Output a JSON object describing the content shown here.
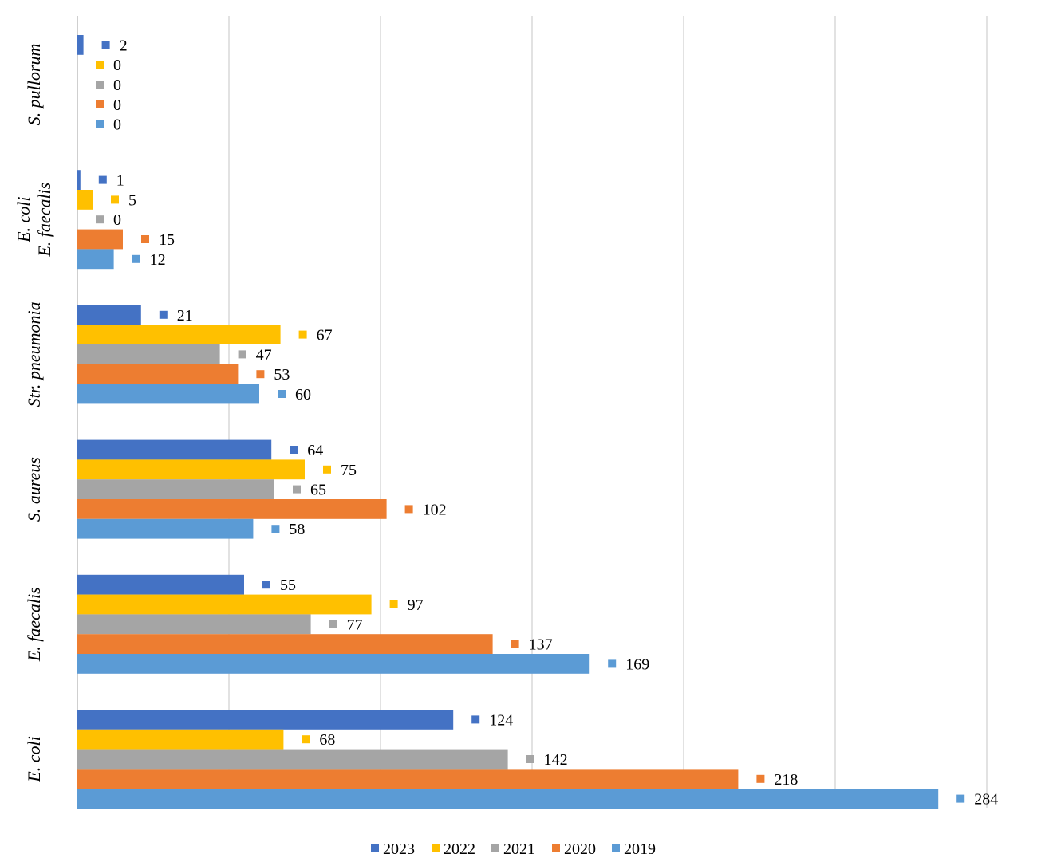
{
  "chart_data": {
    "type": "bar",
    "orientation": "horizontal",
    "title": "",
    "xlabel": "",
    "ylabel": "",
    "xlim": [
      0,
      300
    ],
    "grid": true,
    "legend_position": "bottom",
    "categories": [
      [
        "S. pullorum"
      ],
      [
        "E. coli",
        "E. faecalis"
      ],
      [
        "Str. pneumonia"
      ],
      [
        "S. aureus"
      ],
      [
        "E. faecalis"
      ],
      [
        "E. coli"
      ]
    ],
    "series": [
      {
        "name": "2023",
        "color": "#4472C4",
        "values": [
          2,
          1,
          21,
          64,
          55,
          124
        ]
      },
      {
        "name": "2022",
        "color": "#FFC000",
        "values": [
          0,
          5,
          67,
          75,
          97,
          68
        ]
      },
      {
        "name": "2021",
        "color": "#A5A5A5",
        "values": [
          0,
          0,
          47,
          65,
          77,
          142
        ]
      },
      {
        "name": "2020",
        "color": "#ED7D31",
        "values": [
          0,
          15,
          53,
          102,
          137,
          218
        ]
      },
      {
        "name": "2019",
        "color": "#5B9BD5",
        "values": [
          0,
          12,
          60,
          58,
          169,
          284
        ]
      }
    ]
  }
}
